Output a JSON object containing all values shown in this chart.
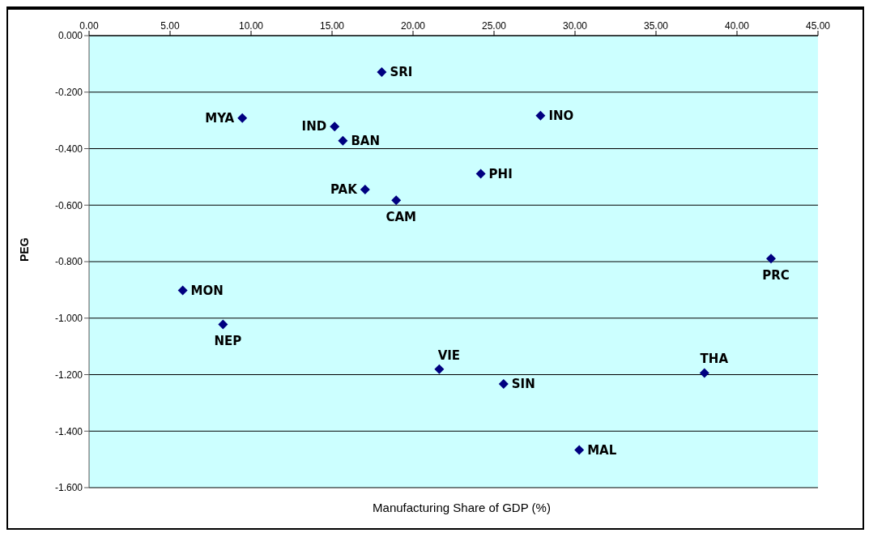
{
  "chart_data": {
    "type": "scatter",
    "xlabel": "Manufacturing Share of GDP (%)",
    "ylabel": "PEG",
    "x": [
      18.07,
      9.46,
      15.16,
      15.67,
      17.04,
      18.96,
      27.87,
      24.18,
      42.1,
      5.78,
      8.27,
      21.62,
      25.59,
      37.99,
      30.26
    ],
    "series": [
      {
        "color": "#000080",
        "values": [
          -0.129,
          -0.292,
          -0.322,
          -0.372,
          -0.545,
          -0.583,
          -0.283,
          -0.489,
          -0.789,
          -0.902,
          -1.022,
          -1.181,
          -1.233,
          -1.194,
          -1.467
        ]
      }
    ],
    "annotations": [
      {
        "text": "SRI",
        "x": 18.07,
        "y": -0.129
      },
      {
        "text": "MYA",
        "x": 9.46,
        "y": -0.292
      },
      {
        "text": "IND",
        "x": 15.16,
        "y": -0.322
      },
      {
        "text": "BAN",
        "x": 15.67,
        "y": -0.372
      },
      {
        "text": "PAK",
        "x": 17.04,
        "y": -0.545
      },
      {
        "text": "CAM",
        "x": 18.96,
        "y": -0.583
      },
      {
        "text": "INO",
        "x": 27.87,
        "y": -0.283
      },
      {
        "text": "PHI",
        "x": 24.18,
        "y": -0.489
      },
      {
        "text": "PRC",
        "x": 42.1,
        "y": -0.789
      },
      {
        "text": "MON",
        "x": 5.78,
        "y": -0.902
      },
      {
        "text": "NEP",
        "x": 8.27,
        "y": -1.022
      },
      {
        "text": "VIE",
        "x": 21.62,
        "y": -1.181
      },
      {
        "text": "SIN",
        "x": 25.59,
        "y": -1.233
      },
      {
        "text": "THA",
        "x": 37.99,
        "y": -1.194
      },
      {
        "text": "MAL",
        "x": 30.26,
        "y": -1.467
      }
    ],
    "xlim": [
      0,
      45
    ],
    "xticks": [
      {
        "value": 0,
        "label": "0.00"
      },
      {
        "value": 5,
        "label": "5.00"
      },
      {
        "value": 10,
        "label": "10.00"
      },
      {
        "value": 15,
        "label": "15.00"
      },
      {
        "value": 20,
        "label": "20.00"
      },
      {
        "value": 25,
        "label": "25.00"
      },
      {
        "value": 30,
        "label": "30.00"
      },
      {
        "value": 35,
        "label": "35.00"
      },
      {
        "value": 40,
        "label": "40.00"
      },
      {
        "value": 45,
        "label": "45.00"
      }
    ],
    "ylim": [
      -1.6,
      0
    ],
    "yticks": [
      {
        "value": 0,
        "label": "0.000"
      },
      {
        "value": -0.2,
        "label": "-0.200"
      },
      {
        "value": -0.4,
        "label": "-0.400"
      },
      {
        "value": -0.6,
        "label": "-0.600"
      },
      {
        "value": -0.8,
        "label": "-0.800"
      },
      {
        "value": -1,
        "label": "-1.000"
      },
      {
        "value": -1.2,
        "label": "-1.200"
      },
      {
        "value": -1.4,
        "label": "-1.400"
      },
      {
        "value": -1.6,
        "label": "-1.600"
      }
    ],
    "grid": "y",
    "marker": "diamond",
    "legend": false
  }
}
